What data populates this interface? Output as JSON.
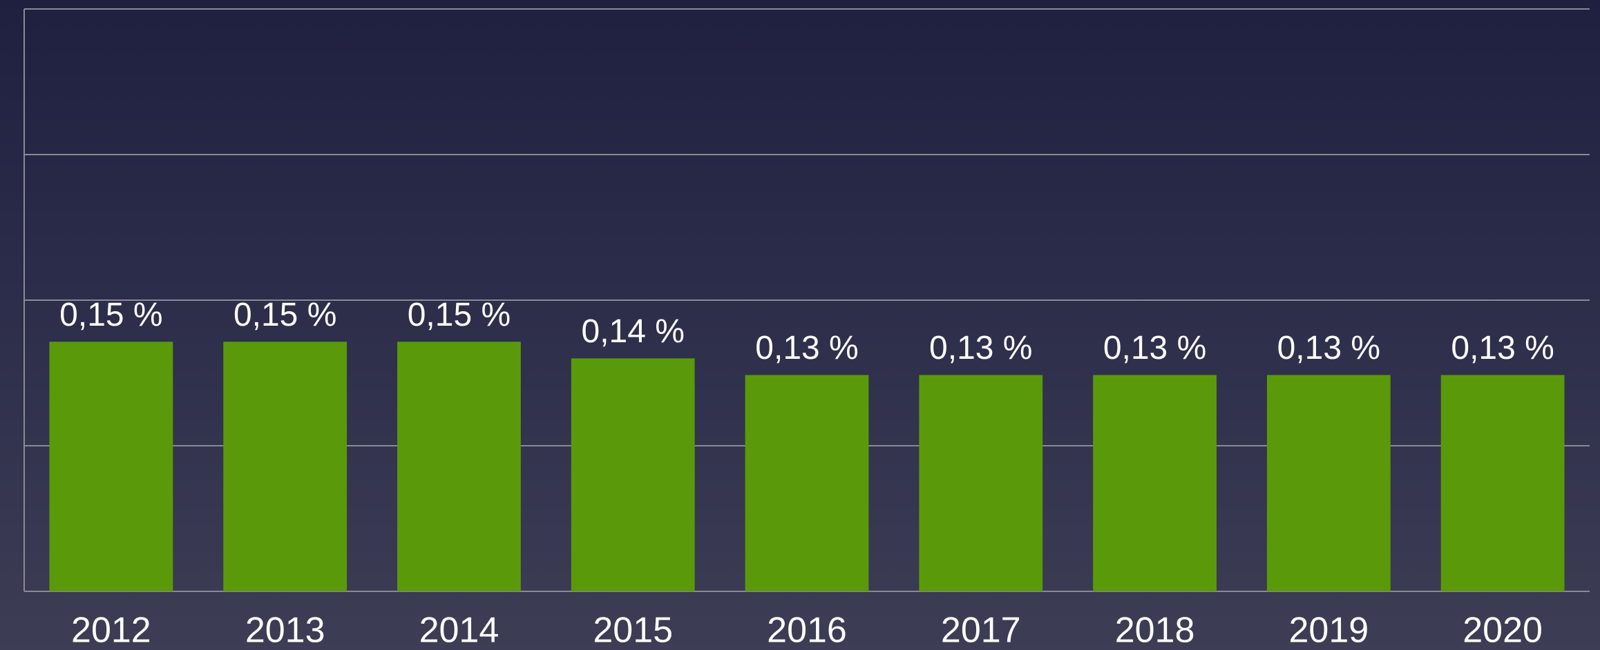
{
  "chart_data": {
    "type": "bar",
    "categories": [
      "2012",
      "2013",
      "2014",
      "2015",
      "2016",
      "2017",
      "2018",
      "2019",
      "2020"
    ],
    "values": [
      0.15,
      0.15,
      0.15,
      0.14,
      0.13,
      0.13,
      0.13,
      0.13,
      0.13
    ],
    "value_labels": [
      "0,15 %",
      "0,15 %",
      "0,15 %",
      "0,14 %",
      "0,13 %",
      "0,13 %",
      "0,13 %",
      "0,13 %",
      "0,13 %"
    ],
    "color": "#5a9a0a",
    "ylim": [
      0,
      0.35
    ],
    "yticks": [
      0,
      0.0875,
      0.175,
      0.2625,
      0.35
    ],
    "grid": true
  }
}
